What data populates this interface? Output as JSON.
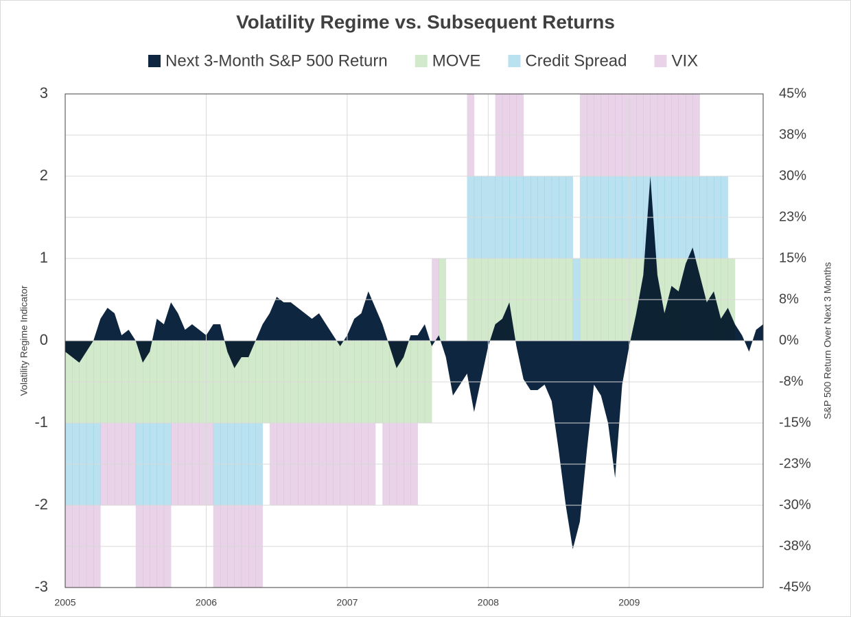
{
  "chart_data": {
    "type": "combo",
    "title": "Volatility Regime vs. Subsequent Returns",
    "y_label": "Volatility Regime Indicator",
    "y2_label": "S&P 500 Return Over Next 3 Months",
    "x": [
      2005,
      2005.05,
      2005.1,
      2005.15,
      2005.2,
      2005.25,
      2005.3,
      2005.35,
      2005.4,
      2005.45,
      2005.5,
      2005.55,
      2005.6,
      2005.65,
      2005.7,
      2005.75,
      2005.8,
      2005.85,
      2005.9,
      2005.95,
      2006,
      2006.05,
      2006.1,
      2006.15,
      2006.2,
      2006.25,
      2006.3,
      2006.35,
      2006.4,
      2006.45,
      2006.5,
      2006.55,
      2006.6,
      2006.65,
      2006.7,
      2006.75,
      2006.8,
      2006.85,
      2006.9,
      2006.95,
      2007,
      2007.05,
      2007.1,
      2007.15,
      2007.2,
      2007.25,
      2007.3,
      2007.35,
      2007.4,
      2007.45,
      2007.5,
      2007.55,
      2007.6,
      2007.65,
      2007.7,
      2007.75,
      2007.8,
      2007.85,
      2007.9,
      2007.95,
      2008,
      2008.05,
      2008.1,
      2008.15,
      2008.2,
      2008.25,
      2008.3,
      2008.35,
      2008.4,
      2008.45,
      2008.5,
      2008.55,
      2008.6,
      2008.65,
      2008.7,
      2008.75,
      2008.8,
      2008.85,
      2008.9,
      2008.95,
      2009,
      2009.05,
      2009.1,
      2009.15,
      2009.2,
      2009.25,
      2009.3,
      2009.35,
      2009.4,
      2009.45,
      2009.5,
      2009.55,
      2009.6,
      2009.65,
      2009.7,
      2009.75,
      2009.8,
      2009.85,
      2009.9,
      2009.95
    ],
    "series": [
      {
        "name": "Next 3-Month S&P 500 Return",
        "type": "area",
        "axis": "y2",
        "color": "#0f2640",
        "values": [
          -2,
          -3,
          -4,
          -2,
          0,
          4,
          6,
          5,
          1,
          2,
          0,
          -4,
          -2,
          4,
          3,
          7,
          5,
          2,
          3,
          2,
          1,
          3,
          3,
          -2,
          -5,
          -3,
          -3,
          0,
          3,
          5,
          8,
          7,
          7,
          6,
          5,
          4,
          5,
          3,
          1,
          -1,
          1,
          4,
          5,
          9,
          6,
          3,
          -1,
          -5,
          -3,
          1,
          1,
          3,
          -1,
          1,
          -3,
          -10,
          -8,
          -6,
          -13,
          -7,
          -1,
          3,
          4,
          7,
          -1,
          -7,
          -9,
          -9,
          -8,
          -11,
          -20,
          -30,
          -38,
          -33,
          -20,
          -8,
          -10,
          -15,
          -25,
          -8,
          -1,
          5,
          12,
          30,
          12,
          5,
          10,
          9,
          14,
          17,
          12,
          7,
          9,
          4,
          6,
          3,
          1,
          -2,
          2,
          3
        ]
      },
      {
        "name": "MOVE",
        "type": "bar",
        "color": "#d3e9cc",
        "values": [
          -1,
          -1,
          -1,
          -1,
          -1,
          -1,
          -1,
          -1,
          -1,
          -1,
          -1,
          -1,
          -1,
          -1,
          -1,
          -1,
          -1,
          -1,
          -1,
          -1,
          -1,
          -1,
          -1,
          -1,
          -1,
          -1,
          -1,
          -1,
          -1,
          -1,
          -1,
          -1,
          -1,
          -1,
          -1,
          -1,
          -1,
          -1,
          -1,
          -1,
          -1,
          -1,
          -1,
          -1,
          -1,
          -1,
          -1,
          -1,
          -1,
          -1,
          -1,
          -1,
          0,
          1,
          0,
          0,
          0,
          1,
          1,
          1,
          1,
          1,
          1,
          1,
          1,
          1,
          1,
          1,
          1,
          1,
          1,
          1,
          0,
          1,
          1,
          1,
          1,
          1,
          1,
          1,
          1,
          1,
          1,
          1,
          1,
          1,
          1,
          1,
          1,
          1,
          1,
          1,
          1,
          1,
          1,
          0,
          0,
          0,
          0,
          0
        ]
      },
      {
        "name": "Credit Spread",
        "type": "bar",
        "color": "#b9e1f0",
        "values": [
          -1,
          -1,
          -1,
          -1,
          -1,
          0,
          0,
          0,
          0,
          0,
          -1,
          -1,
          -1,
          -1,
          -1,
          0,
          0,
          0,
          0,
          0,
          0,
          -1,
          -1,
          -1,
          -1,
          -1,
          -1,
          -1,
          0,
          0,
          0,
          0,
          0,
          0,
          0,
          0,
          0,
          0,
          0,
          0,
          0,
          0,
          0,
          0,
          0,
          0,
          0,
          0,
          0,
          0,
          0,
          0,
          0,
          0,
          0,
          0,
          0,
          1,
          1,
          1,
          1,
          1,
          1,
          1,
          1,
          1,
          1,
          1,
          1,
          1,
          1,
          1,
          1,
          1,
          1,
          1,
          1,
          1,
          1,
          1,
          1,
          1,
          1,
          1,
          1,
          1,
          1,
          1,
          1,
          1,
          1,
          1,
          1,
          1,
          0,
          0,
          0,
          0,
          0,
          0
        ]
      },
      {
        "name": "VIX",
        "type": "bar",
        "color": "#e9d3e8",
        "values": [
          -1,
          -1,
          -1,
          -1,
          -1,
          -1,
          -1,
          -1,
          -1,
          -1,
          -1,
          -1,
          -1,
          -1,
          -1,
          -1,
          -1,
          -1,
          -1,
          -1,
          -1,
          -1,
          -1,
          -1,
          -1,
          -1,
          -1,
          -1,
          0,
          -1,
          -1,
          -1,
          -1,
          -1,
          -1,
          -1,
          -1,
          -1,
          -1,
          -1,
          -1,
          -1,
          -1,
          -1,
          0,
          -1,
          -1,
          -1,
          -1,
          -1,
          0,
          0,
          1,
          0,
          0,
          0,
          0,
          1,
          0,
          0,
          0,
          1,
          1,
          1,
          1,
          0,
          0,
          0,
          0,
          0,
          0,
          0,
          0,
          1,
          1,
          1,
          1,
          1,
          1,
          1,
          1,
          1,
          1,
          1,
          1,
          1,
          1,
          1,
          1,
          1,
          0,
          0,
          0,
          0,
          0,
          0,
          0,
          0,
          0,
          0
        ]
      }
    ],
    "xlim": [
      2005,
      2009.95
    ],
    "xticks": [
      2005,
      2006,
      2007,
      2008,
      2009
    ],
    "ylim": [
      -3,
      3
    ],
    "yticks": [
      3,
      2,
      1,
      0,
      -1,
      -2,
      -3
    ],
    "y2lim": [
      -45,
      45
    ],
    "y2ticks": [
      {
        "value": 45,
        "label": "45%"
      },
      {
        "value": 37.5,
        "label": "38%"
      },
      {
        "value": 30,
        "label": "30%"
      },
      {
        "value": 22.5,
        "label": "23%"
      },
      {
        "value": 15,
        "label": "15%"
      },
      {
        "value": 7.5,
        "label": "8%"
      },
      {
        "value": 0,
        "label": "0%"
      },
      {
        "value": -7.5,
        "label": "-8%"
      },
      {
        "value": -15,
        "label": "-15%"
      },
      {
        "value": -22.5,
        "label": "-23%"
      },
      {
        "value": -30,
        "label": "-30%"
      },
      {
        "value": -37.5,
        "label": "-38%"
      },
      {
        "value": -45,
        "label": "-45%"
      }
    ],
    "grid": true,
    "legend": "top"
  }
}
